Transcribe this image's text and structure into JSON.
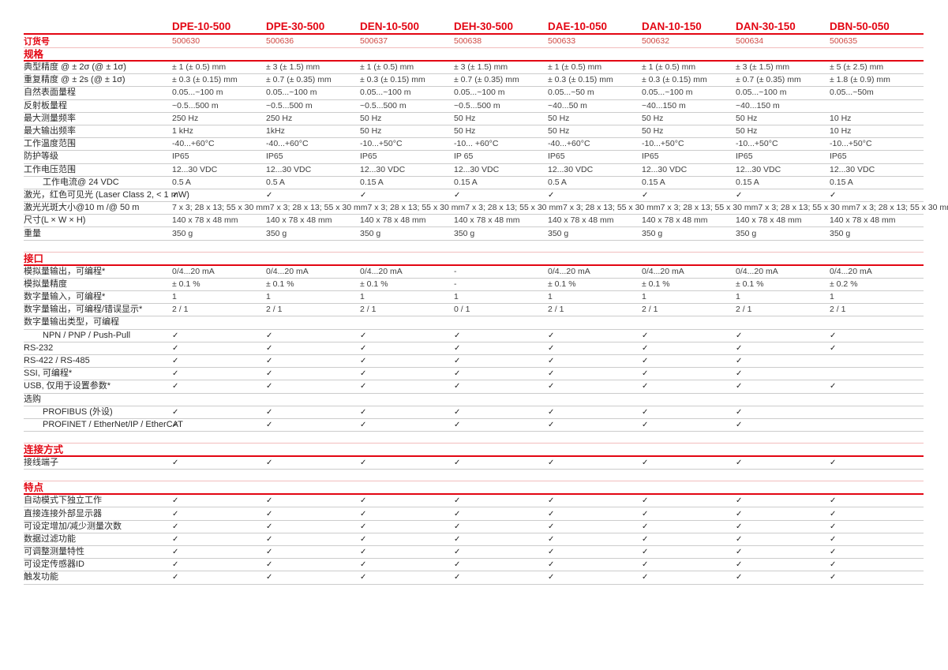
{
  "colors": {
    "accent_red": "#e30613",
    "order_number_red": "#cf4a44",
    "light_red_line": "#f2bdbd",
    "row_separator": "#cccccc"
  },
  "icons": {
    "check_glyph": "✓"
  },
  "table": {
    "order_label": "订货号",
    "products": [
      {
        "name": "DPE-10-500",
        "order_no": "500630"
      },
      {
        "name": "DPE-30-500",
        "order_no": "500636"
      },
      {
        "name": "DEN-10-500",
        "order_no": "500637"
      },
      {
        "name": "DEH-30-500",
        "order_no": "500638"
      },
      {
        "name": "DAE-10-050",
        "order_no": "500633"
      },
      {
        "name": "DAN-10-150",
        "order_no": "500632"
      },
      {
        "name": "DAN-30-150",
        "order_no": "500634"
      },
      {
        "name": "DBN-50-050",
        "order_no": "500635"
      }
    ],
    "sections": [
      {
        "title": "规格",
        "rows": [
          {
            "label": "典型精度 @ ± 2σ (@ ± 1σ)",
            "values": [
              "± 1 (± 0.5) mm",
              "± 3 (± 1.5) mm",
              "± 1 (± 0.5) mm",
              "± 3 (± 1.5) mm",
              "± 1 (± 0.5) mm",
              "± 1 (± 0.5) mm",
              "± 3 (± 1.5) mm",
              "± 5 (± 2.5) mm"
            ]
          },
          {
            "label": "重复精度 @ ± 2s (@ ± 1σ)",
            "values": [
              "± 0.3 (± 0.15) mm",
              "± 0.7 (± 0.35) mm",
              "± 0.3 (± 0.15) mm",
              "± 0.7 (± 0.35) mm",
              "± 0.3 (± 0.15) mm",
              "± 0.3 (± 0.15) mm",
              "± 0.7 (± 0.35) mm",
              "± 1.8 (± 0.9) mm"
            ]
          },
          {
            "label": "自然表面量程",
            "values": [
              "0.05...~100 m",
              "0.05...~100 m",
              "0.05...~100 m",
              "0.05...~100 m",
              "0.05...~50 m",
              "0.05...~100 m",
              "0.05...~100 m",
              "0.05...~50m"
            ]
          },
          {
            "label": "反射板量程",
            "values": [
              "~0.5...500 m",
              "~0.5...500 m",
              "~0.5...500 m",
              "~0.5...500 m",
              "~40...50 m",
              "~40...150 m",
              "~40...150 m",
              ""
            ]
          },
          {
            "label": "最大测量频率",
            "values": [
              "250 Hz",
              "250 Hz",
              "50 Hz",
              "50 Hz",
              "50 Hz",
              "50 Hz",
              "50 Hz",
              "10 Hz"
            ]
          },
          {
            "label": "最大输出频率",
            "values": [
              "1 kHz",
              "1kHz",
              "50 Hz",
              "50 Hz",
              "50 Hz",
              "50 Hz",
              "50 Hz",
              "10 Hz"
            ]
          },
          {
            "label": "工作温度范围",
            "values": [
              "-40...+60°C",
              "-40...+60°C",
              "-10...+50°C",
              "-10... +60°C",
              "-40...+60°C",
              "-10...+50°C",
              "-10...+50°C",
              "-10...+50°C"
            ]
          },
          {
            "label": "防护等级",
            "values": [
              "IP65",
              "IP65",
              "IP65",
              "IP 65",
              "IP65",
              "IP65",
              "IP65",
              "IP65"
            ]
          },
          {
            "label": "工作电压范围",
            "values": [
              "12...30 VDC",
              "12...30 VDC",
              "12...30 VDC",
              "12...30 VDC",
              "12...30 VDC",
              "12...30 VDC",
              "12...30 VDC",
              "12...30 VDC"
            ]
          },
          {
            "label": "工作电流@ 24 VDC",
            "indent": true,
            "values": [
              "0.5 A",
              "0.5 A",
              "0.15 A",
              "0.15 A",
              "0.5 A",
              "0.15 A",
              "0.15 A",
              "0.15 A"
            ]
          },
          {
            "label": "激光，红色可见光 (Laser Class 2, < 1 mW)",
            "values": [
              "✓",
              "✓",
              "✓",
              "✓",
              "✓",
              "✓",
              "✓",
              "✓"
            ]
          },
          {
            "label": "激光光斑大小@10 m /@ 50 m",
            "values": [
              "7 x 3; 28 x 13; 55 x 30 mm",
              "7 x 3; 28 x 13; 55 x 30 mm",
              "7 x 3; 28 x 13; 55 x 30 mm",
              "7 x 3; 28 x 13; 55 x 30 mm",
              "7 x 3; 28 x 13; 55 x 30 mm",
              "7 x 3; 28 x 13; 55 x 30 mm",
              "7 x 3; 28 x 13; 55 x 30 mm",
              "7 x 3; 28 x 13; 55 x 30 mm"
            ]
          },
          {
            "label": "尺寸(L × W × H)",
            "values": [
              "140 x 78 x 48 mm",
              "140 x 78 x 48 mm",
              "140 x 78 x 48 mm",
              "140 x 78 x 48 mm",
              "140 x 78 x 48 mm",
              "140 x 78 x 48 mm",
              "140 x 78 x 48 mm",
              "140 x 78 x 48 mm"
            ]
          },
          {
            "label": "重量",
            "values": [
              "350 g",
              "350 g",
              "350 g",
              "350 g",
              "350 g",
              "350 g",
              "350 g",
              "350 g"
            ]
          }
        ]
      },
      {
        "title": "接口",
        "rows": [
          {
            "label": "模拟量输出，可编程*",
            "values": [
              "0/4...20 mA",
              "0/4...20 mA",
              "0/4...20 mA",
              "-",
              "0/4...20 mA",
              "0/4...20 mA",
              "0/4...20 mA",
              "0/4...20 mA"
            ]
          },
          {
            "label": "模拟量精度",
            "values": [
              "± 0.1 %",
              "± 0.1 %",
              "± 0.1 %",
              "-",
              "± 0.1 %",
              "± 0.1 %",
              "± 0.1 %",
              "± 0.2 %"
            ]
          },
          {
            "label": "数字量输入，可编程*",
            "values": [
              "1",
              "1",
              "1",
              "1",
              "1",
              "1",
              "1",
              "1"
            ]
          },
          {
            "label": "数字量输出，可编程/错误显示*",
            "values": [
              "2 / 1",
              "2 / 1",
              "2 / 1",
              "0 / 1",
              "2 / 1",
              "2 / 1",
              "2 / 1",
              "2 / 1"
            ]
          },
          {
            "label": "数字量输出类型，可编程",
            "subheader": true,
            "values": [
              "",
              "",
              "",
              "",
              "",
              "",
              "",
              ""
            ]
          },
          {
            "label": "NPN / PNP / Push-Pull",
            "indent": true,
            "values": [
              "✓",
              "✓",
              "✓",
              "✓",
              "✓",
              "✓",
              "✓",
              "✓"
            ]
          },
          {
            "label": "RS-232",
            "values": [
              "✓",
              "✓",
              "✓",
              "✓",
              "✓",
              "✓",
              "✓",
              "✓"
            ]
          },
          {
            "label": "RS-422 / RS-485",
            "values": [
              "✓",
              "✓",
              "✓",
              "✓",
              "✓",
              "✓",
              "✓",
              ""
            ]
          },
          {
            "label": "SSI, 可编程*",
            "values": [
              "✓",
              "✓",
              "✓",
              "✓",
              "✓",
              "✓",
              "✓",
              ""
            ]
          },
          {
            "label": "USB, 仅用于设置参数*",
            "values": [
              "✓",
              "✓",
              "✓",
              "✓",
              "✓",
              "✓",
              "✓",
              "✓"
            ]
          },
          {
            "label": "选购",
            "subheader": true,
            "values": [
              "",
              "",
              "",
              "",
              "",
              "",
              "",
              ""
            ]
          },
          {
            "label": "PROFIBUS (外设)",
            "indent": true,
            "values": [
              "✓",
              "✓",
              "✓",
              "✓",
              "✓",
              "✓",
              "✓",
              ""
            ]
          },
          {
            "label": "PROFINET / EtherNet/IP / EtherCAT",
            "indent": true,
            "values": [
              "✓",
              "✓",
              "✓",
              "✓",
              "✓",
              "✓",
              "✓",
              ""
            ]
          }
        ]
      },
      {
        "title": "连接方式",
        "rows": [
          {
            "label": "接线端子",
            "values": [
              "✓",
              "✓",
              "✓",
              "✓",
              "✓",
              "✓",
              "✓",
              "✓"
            ]
          }
        ]
      },
      {
        "title": "特点",
        "rows": [
          {
            "label": "自动模式下独立工作",
            "values": [
              "✓",
              "✓",
              "✓",
              "✓",
              "✓",
              "✓",
              "✓",
              "✓"
            ]
          },
          {
            "label": "直接连接外部显示器",
            "values": [
              "✓",
              "✓",
              "✓",
              "✓",
              "✓",
              "✓",
              "✓",
              "✓"
            ]
          },
          {
            "label": "可设定增加/减少测量次数",
            "values": [
              "✓",
              "✓",
              "✓",
              "✓",
              "✓",
              "✓",
              "✓",
              "✓"
            ]
          },
          {
            "label": "数据过滤功能",
            "values": [
              "✓",
              "✓",
              "✓",
              "✓",
              "✓",
              "✓",
              "✓",
              "✓"
            ]
          },
          {
            "label": "可调整测量特性",
            "values": [
              "✓",
              "✓",
              "✓",
              "✓",
              "✓",
              "✓",
              "✓",
              "✓"
            ]
          },
          {
            "label": "可设定传感器ID",
            "values": [
              "✓",
              "✓",
              "✓",
              "✓",
              "✓",
              "✓",
              "✓",
              "✓"
            ]
          },
          {
            "label": "触发功能",
            "values": [
              "✓",
              "✓",
              "✓",
              "✓",
              "✓",
              "✓",
              "✓",
              "✓"
            ]
          }
        ]
      }
    ]
  }
}
